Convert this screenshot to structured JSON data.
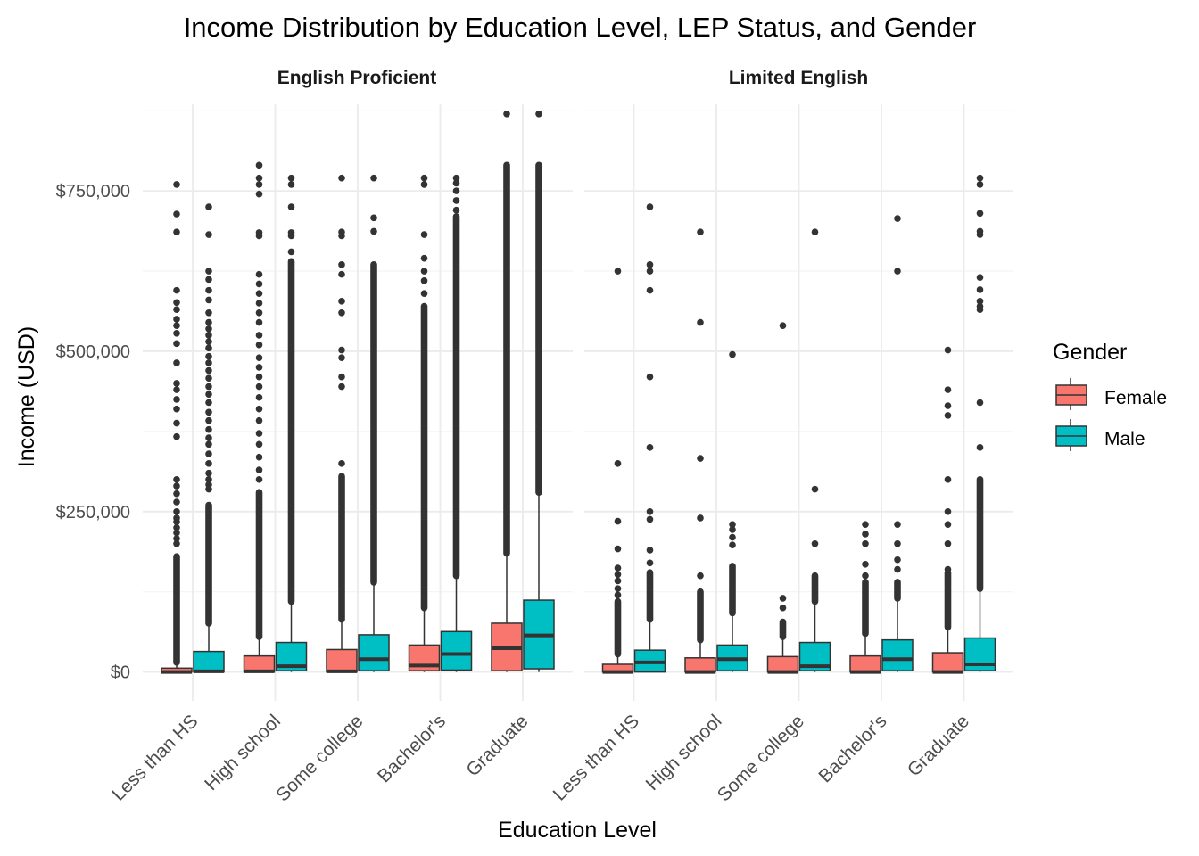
{
  "chart_data": {
    "type": "boxplot",
    "title": "Income Distribution by Education Level, LEP Status, and Gender",
    "xlabel": "Education Level",
    "ylabel": "Income (USD)",
    "ylim": [
      -45000,
      885000
    ],
    "yticks": [
      0,
      250000,
      500000,
      750000
    ],
    "ytick_labels": [
      "$0",
      "$250,000",
      "$500,000",
      "$750,000"
    ],
    "grid": true,
    "legend": {
      "title": "Gender",
      "position": "right",
      "entries": [
        {
          "name": "Female",
          "color": "#F8766D"
        },
        {
          "name": "Male",
          "color": "#00BFC4"
        }
      ]
    },
    "categories": [
      "Less than HS",
      "High school",
      "Some college",
      "Bachelor's",
      "Graduate"
    ],
    "panels": [
      {
        "label": "English Proficient",
        "groups": [
          {
            "category": "Less than HS",
            "Female": {
              "q1": 0,
              "median": 0,
              "q3": 6000,
              "whisker_low": 0,
              "whisker_high": 15000,
              "dense_outliers": [
                15000,
                180000
              ],
              "outliers": [
                200000,
                208000,
                217000,
                225000,
                234000,
                240000,
                250000,
                265000,
                278000,
                290000,
                300000,
                367000,
                388000,
                410000,
                425000,
                440000,
                450000,
                482000,
                512000,
                528000,
                540000,
                550000,
                565000,
                576000,
                595000,
                686000,
                714000,
                760000
              ]
            },
            "Male": {
              "q1": 0,
              "median": 1000,
              "q3": 32000,
              "whisker_low": 0,
              "whisker_high": 76000,
              "dense_outliers": [
                76000,
                260000
              ],
              "outliers": [
                285000,
                292000,
                300000,
                310000,
                325000,
                340000,
                355000,
                365000,
                378000,
                392000,
                405000,
                420000,
                433000,
                445000,
                458000,
                470000,
                482000,
                492000,
                505000,
                515000,
                525000,
                535000,
                545000,
                560000,
                580000,
                595000,
                612000,
                625000,
                682000,
                725000
              ]
            }
          },
          {
            "category": "High school",
            "Female": {
              "q1": 0,
              "median": 1000,
              "q3": 25000,
              "whisker_low": 0,
              "whisker_high": 55000,
              "dense_outliers": [
                55000,
                280000
              ],
              "outliers": [
                300000,
                315000,
                335000,
                355000,
                372000,
                392000,
                410000,
                428000,
                445000,
                460000,
                475000,
                490000,
                510000,
                525000,
                545000,
                560000,
                575000,
                590000,
                605000,
                620000,
                680000,
                685000,
                745000,
                760000,
                770000,
                790000
              ]
            },
            "Male": {
              "q1": 2000,
              "median": 9000,
              "q3": 46000,
              "whisker_low": 0,
              "whisker_high": 110000,
              "dense_outliers": [
                110000,
                640000
              ],
              "outliers": [
                655000,
                680000,
                685000,
                725000,
                760000,
                770000
              ]
            }
          },
          {
            "category": "Some college",
            "Female": {
              "q1": 0,
              "median": 1000,
              "q3": 35000,
              "whisker_low": 0,
              "whisker_high": 82000,
              "dense_outliers": [
                82000,
                305000
              ],
              "outliers": [
                325000,
                445000,
                460000,
                490000,
                502000,
                560000,
                578000,
                620000,
                635000,
                680000,
                686000,
                770000
              ]
            },
            "Male": {
              "q1": 2000,
              "median": 20000,
              "q3": 58000,
              "whisker_low": 0,
              "whisker_high": 140000,
              "dense_outliers": [
                140000,
                635000
              ],
              "outliers": [
                687000,
                708000,
                770000
              ]
            }
          },
          {
            "category": "Bachelor's",
            "Female": {
              "q1": 2000,
              "median": 10000,
              "q3": 42000,
              "whisker_low": 0,
              "whisker_high": 100000,
              "dense_outliers": [
                100000,
                570000
              ],
              "outliers": [
                590000,
                610000,
                625000,
                645000,
                682000,
                760000,
                770000
              ]
            },
            "Male": {
              "q1": 3000,
              "median": 28000,
              "q3": 63000,
              "whisker_low": 0,
              "whisker_high": 150000,
              "dense_outliers": [
                150000,
                710000
              ],
              "outliers": [
                720000,
                735000,
                750000,
                762000,
                770000
              ]
            }
          },
          {
            "category": "Graduate",
            "Female": {
              "q1": 2000,
              "median": 37000,
              "q3": 76000,
              "whisker_low": 0,
              "whisker_high": 185000,
              "dense_outliers": [
                185000,
                790000
              ],
              "outliers": [
                870000
              ]
            },
            "Male": {
              "q1": 5000,
              "median": 57000,
              "q3": 112000,
              "whisker_low": 0,
              "whisker_high": 280000,
              "dense_outliers": [
                280000,
                790000
              ],
              "outliers": [
                870000
              ]
            }
          }
        ]
      },
      {
        "label": "Limited English",
        "groups": [
          {
            "category": "Less than HS",
            "Female": {
              "q1": 0,
              "median": 0,
              "q3": 12000,
              "whisker_low": 0,
              "whisker_high": 28000,
              "dense_outliers": [
                28000,
                110000
              ],
              "outliers": [
                120000,
                130000,
                142000,
                152000,
                162000,
                192000,
                235000,
                325000,
                625000
              ]
            },
            "Male": {
              "q1": 0,
              "median": 15000,
              "q3": 34000,
              "whisker_low": 0,
              "whisker_high": 82000,
              "dense_outliers": [
                82000,
                155000
              ],
              "outliers": [
                170000,
                190000,
                238000,
                250000,
                350000,
                460000,
                595000,
                625000,
                635000,
                725000
              ]
            }
          },
          {
            "category": "High school",
            "Female": {
              "q1": 0,
              "median": 0,
              "q3": 22000,
              "whisker_low": 0,
              "whisker_high": 50000,
              "dense_outliers": [
                50000,
                125000
              ],
              "outliers": [
                150000,
                240000,
                333000,
                545000,
                686000
              ]
            },
            "Male": {
              "q1": 2000,
              "median": 20000,
              "q3": 42000,
              "whisker_low": 0,
              "whisker_high": 92000,
              "dense_outliers": [
                92000,
                165000
              ],
              "outliers": [
                198000,
                210000,
                222000,
                230000,
                495000
              ]
            }
          },
          {
            "category": "Some college",
            "Female": {
              "q1": 0,
              "median": 0,
              "q3": 24000,
              "whisker_low": 0,
              "whisker_high": 55000,
              "dense_outliers": [
                55000,
                78000
              ],
              "outliers": [
                100000,
                115000,
                540000
              ]
            },
            "Male": {
              "q1": 2000,
              "median": 9000,
              "q3": 46000,
              "whisker_low": 0,
              "whisker_high": 110000,
              "dense_outliers": [
                110000,
                150000
              ],
              "outliers": [
                200000,
                285000,
                686000
              ]
            }
          },
          {
            "category": "Bachelor's",
            "Female": {
              "q1": 0,
              "median": 0,
              "q3": 25000,
              "whisker_low": 0,
              "whisker_high": 60000,
              "dense_outliers": [
                60000,
                140000
              ],
              "outliers": [
                150000,
                168000,
                200000,
                215000,
                230000
              ]
            },
            "Male": {
              "q1": 2000,
              "median": 20000,
              "q3": 50000,
              "whisker_low": 0,
              "whisker_high": 115000,
              "dense_outliers": [
                115000,
                140000
              ],
              "outliers": [
                160000,
                175000,
                200000,
                230000,
                625000,
                707000
              ]
            }
          },
          {
            "category": "Graduate",
            "Female": {
              "q1": 0,
              "median": 0,
              "q3": 30000,
              "whisker_low": 0,
              "whisker_high": 70000,
              "dense_outliers": [
                70000,
                155000
              ],
              "outliers": [
                160000,
                200000,
                230000,
                250000,
                300000,
                400000,
                415000,
                440000,
                502000
              ]
            },
            "Male": {
              "q1": 2000,
              "median": 12000,
              "q3": 53000,
              "whisker_low": 0,
              "whisker_high": 130000,
              "dense_outliers": [
                130000,
                300000
              ],
              "outliers": [
                350000,
                420000,
                565000,
                570000,
                578000,
                596000,
                615000,
                682000,
                687000,
                715000,
                760000,
                770000
              ]
            }
          }
        ]
      }
    ]
  }
}
